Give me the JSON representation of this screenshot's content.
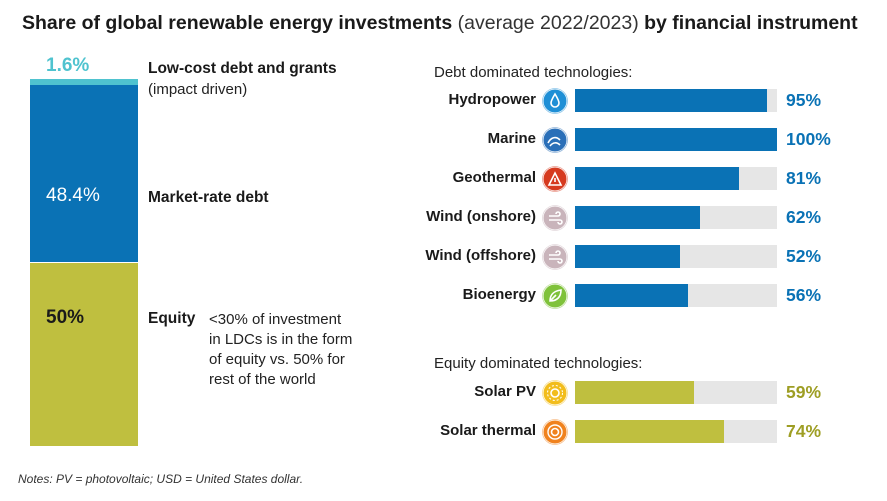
{
  "title": {
    "bold1": "Share of global renewable energy investments",
    "normal": "(average 2022/2023)",
    "bold2": "by financial instrument"
  },
  "colors": {
    "low_cost": "#4fc3cf",
    "market_debt": "#0a72b5",
    "equity": "#bfbf3f",
    "bar_bg": "#e6e6e6"
  },
  "chart_data": [
    {
      "type": "bar",
      "orientation": "stacked-vertical",
      "segments": [
        {
          "label": "Low-cost debt and grants",
          "sublabel": "(impact driven)",
          "value": 1.6,
          "display": "1.6%"
        },
        {
          "label": "Market-rate debt",
          "value": 48.4,
          "display": "48.4%"
        },
        {
          "label": "Equity",
          "value": 50,
          "display": "50%",
          "note": [
            "<30% of investment",
            "in LDCs is in the form",
            "of equity vs. 50% for",
            "rest of the world"
          ]
        }
      ]
    },
    {
      "type": "bar",
      "orientation": "horizontal",
      "xlim": [
        0,
        100
      ],
      "groups": [
        {
          "title": "Debt dominated technologies:",
          "categories": [
            "Hydropower",
            "Marine",
            "Geothermal",
            "Wind (onshore)",
            "Wind (offshore)",
            "Bioenergy"
          ],
          "icons": [
            "water-drop-icon",
            "wave-icon",
            "geothermal-icon",
            "wind-onshore-icon",
            "wind-offshore-icon",
            "leaf-icon"
          ],
          "values": [
            95,
            100,
            81,
            62,
            52,
            56
          ],
          "labels": [
            "95%",
            "100%",
            "81%",
            "62%",
            "52%",
            "56%"
          ]
        },
        {
          "title": "Equity dominated technologies:",
          "categories": [
            "Solar PV",
            "Solar thermal"
          ],
          "icons": [
            "sun-icon",
            "sun-ring-icon"
          ],
          "values": [
            59,
            74
          ],
          "labels": [
            "59%",
            "74%"
          ]
        }
      ]
    }
  ],
  "notes": "Notes: PV = photovoltaic; USD = United States dollar."
}
